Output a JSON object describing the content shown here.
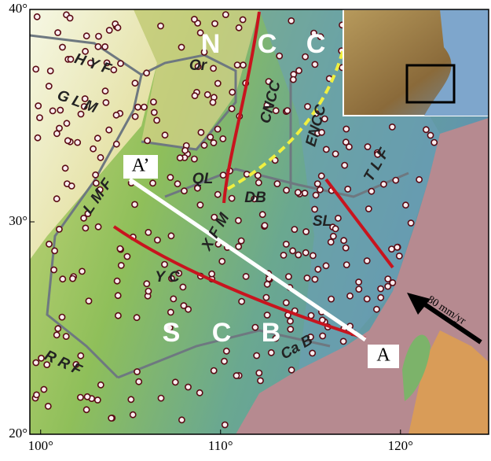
{
  "axes": {
    "xlim": [
      99.4,
      124.9
    ],
    "ylim": [
      20,
      40
    ],
    "x_ticks": [
      {
        "value": 100,
        "label": "100°"
      },
      {
        "value": 110,
        "label": "110°"
      },
      {
        "value": 120,
        "label": "120°"
      }
    ],
    "y_ticks": [
      {
        "value": 20,
        "label": "20°"
      },
      {
        "value": 30,
        "label": "30°"
      },
      {
        "value": 40,
        "label": "40°"
      }
    ]
  },
  "blocks": {
    "north": [
      "N",
      "C",
      "C"
    ],
    "south": [
      "S",
      "C",
      "B"
    ]
  },
  "faults": [
    "H Y F",
    "G L M",
    "Or",
    "CNCC",
    "ENCC",
    "QL",
    "DB",
    "SL",
    "T L F",
    "X F M",
    "L M F",
    "Y C",
    "Ca B",
    "R R F"
  ],
  "profile": {
    "start": "A’",
    "end": "A"
  },
  "velocity": "80 mm/yr"
}
